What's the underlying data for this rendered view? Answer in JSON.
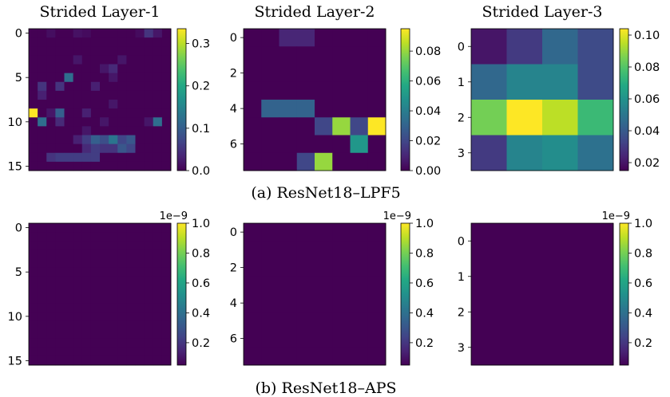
{
  "captions": {
    "a": "(a) ResNet18–LPF5",
    "b": "(b) ResNet18–APS"
  },
  "chart_data": [
    {
      "type": "heatmap",
      "row": "a",
      "title": "Strided Layer-1",
      "size": 16,
      "yticks": [
        0,
        5,
        10,
        15
      ],
      "colorbar": {
        "range": [
          0,
          0.335
        ],
        "ticks": [
          0.0,
          0.1,
          0.2,
          0.3
        ],
        "labels": [
          "0.0",
          "0.1",
          "0.2",
          "0.3"
        ],
        "multiplier": ""
      },
      "values": [
        [
          0.0,
          0.0,
          0.012,
          0.0,
          0.0,
          0.015,
          0.01,
          0.0,
          0.0,
          0.0,
          0.0,
          0.0,
          0.01,
          0.05,
          0.02,
          0.0
        ],
        [
          0.0,
          0.0,
          0.0,
          0.0,
          0.0,
          0.0,
          0.0,
          0.0,
          0.0,
          0.0,
          0.0,
          0.0,
          0.0,
          0.0,
          0.0,
          0.0
        ],
        [
          0.0,
          0.0,
          0.0,
          0.0,
          0.0,
          0.0,
          0.0,
          0.0,
          0.0,
          0.0,
          0.0,
          0.0,
          0.0,
          0.0,
          0.0,
          0.0
        ],
        [
          0.0,
          0.0,
          0.0,
          0.0,
          0.0,
          0.02,
          0.0,
          0.0,
          0.0,
          0.0,
          0.02,
          0.0,
          0.0,
          0.0,
          0.0,
          0.0
        ],
        [
          0.0,
          0.0,
          0.0,
          0.0,
          0.0,
          0.0,
          0.0,
          0.0,
          0.02,
          0.04,
          0.0,
          0.0,
          0.0,
          0.0,
          0.0,
          0.0
        ],
        [
          0.0,
          0.0,
          0.0,
          0.0,
          0.12,
          0.0,
          0.0,
          0.0,
          0.0,
          0.02,
          0.0,
          0.0,
          0.0,
          0.0,
          0.0,
          0.0
        ],
        [
          0.0,
          0.05,
          0.0,
          0.05,
          0.0,
          0.0,
          0.0,
          0.03,
          0.0,
          0.0,
          0.0,
          0.0,
          0.0,
          0.0,
          0.0,
          0.0
        ],
        [
          0.0,
          0.03,
          0.0,
          0.0,
          0.0,
          0.0,
          0.0,
          0.0,
          0.0,
          0.0,
          0.0,
          0.0,
          0.0,
          0.0,
          0.0,
          0.0
        ],
        [
          0.0,
          0.0,
          0.0,
          0.0,
          0.0,
          0.0,
          0.0,
          0.0,
          0.0,
          0.02,
          0.0,
          0.0,
          0.0,
          0.0,
          0.0,
          0.0
        ],
        [
          0.335,
          0.0,
          0.02,
          0.1,
          0.0,
          0.0,
          0.03,
          0.0,
          0.0,
          0.0,
          0.0,
          0.0,
          0.0,
          0.0,
          0.0,
          0.0
        ],
        [
          0.0,
          0.12,
          0.0,
          0.04,
          0.0,
          0.0,
          0.0,
          0.0,
          0.02,
          0.0,
          0.0,
          0.0,
          0.0,
          0.02,
          0.12,
          0.0
        ],
        [
          0.0,
          0.0,
          0.0,
          0.0,
          0.0,
          0.0,
          0.02,
          0.0,
          0.0,
          0.0,
          0.0,
          0.0,
          0.0,
          0.0,
          0.0,
          0.0
        ],
        [
          0.0,
          0.0,
          0.0,
          0.0,
          0.0,
          0.03,
          0.06,
          0.1,
          0.08,
          0.13,
          0.07,
          0.09,
          0.0,
          0.0,
          0.0,
          0.0
        ],
        [
          0.0,
          0.0,
          0.0,
          0.0,
          0.0,
          0.0,
          0.04,
          0.06,
          0.05,
          0.05,
          0.09,
          0.07,
          0.0,
          0.0,
          0.0,
          0.0
        ],
        [
          0.0,
          0.0,
          0.05,
          0.06,
          0.06,
          0.06,
          0.06,
          0.06,
          0.0,
          0.0,
          0.0,
          0.0,
          0.0,
          0.0,
          0.0,
          0.0
        ],
        [
          0.0,
          0.0,
          0.0,
          0.0,
          0.0,
          0.0,
          0.0,
          0.0,
          0.0,
          0.0,
          0.0,
          0.0,
          0.0,
          0.0,
          0.0,
          0.0
        ]
      ]
    },
    {
      "type": "heatmap",
      "row": "a",
      "title": "Strided Layer-2",
      "size": 8,
      "yticks": [
        0,
        2,
        4,
        6
      ],
      "colorbar": {
        "range": [
          0,
          0.095
        ],
        "ticks": [
          0.0,
          0.02,
          0.04,
          0.06,
          0.08
        ],
        "labels": [
          "0.00",
          "0.02",
          "0.04",
          "0.06",
          "0.08"
        ],
        "multiplier": ""
      },
      "values": [
        [
          0.0,
          0.0,
          0.01,
          0.01,
          0.0,
          0.0,
          0.0,
          0.0
        ],
        [
          0.0,
          0.0,
          0.0,
          0.0,
          0.0,
          0.0,
          0.0,
          0.0
        ],
        [
          0.0,
          0.0,
          0.0,
          0.0,
          0.0,
          0.0,
          0.0,
          0.0
        ],
        [
          0.0,
          0.0,
          0.0,
          0.0,
          0.0,
          0.0,
          0.0,
          0.0
        ],
        [
          0.0,
          0.03,
          0.03,
          0.03,
          0.0,
          0.0,
          0.0,
          0.0
        ],
        [
          0.0,
          0.0,
          0.0,
          0.0,
          0.02,
          0.08,
          0.02,
          0.095
        ],
        [
          0.0,
          0.0,
          0.0,
          0.0,
          0.0,
          0.0,
          0.05,
          0.0
        ],
        [
          0.0,
          0.0,
          0.0,
          0.02,
          0.08,
          0.0,
          0.0,
          0.0
        ]
      ]
    },
    {
      "type": "heatmap",
      "row": "a",
      "title": "Strided Layer-3",
      "size": 4,
      "yticks": [
        0,
        1,
        2,
        3
      ],
      "colorbar": {
        "range": [
          0.015,
          0.104
        ],
        "ticks": [
          0.02,
          0.04,
          0.06,
          0.08,
          0.1
        ],
        "labels": [
          "0.02",
          "0.04",
          "0.06",
          "0.08",
          "0.10"
        ],
        "multiplier": ""
      },
      "values": [
        [
          0.02,
          0.03,
          0.045,
          0.035
        ],
        [
          0.045,
          0.055,
          0.055,
          0.035
        ],
        [
          0.085,
          0.104,
          0.095,
          0.075
        ],
        [
          0.03,
          0.055,
          0.058,
          0.048
        ]
      ]
    },
    {
      "type": "heatmap",
      "row": "b",
      "title": "",
      "size": 16,
      "uniform_value": 0,
      "yticks": [
        0,
        5,
        10,
        15
      ],
      "colorbar": {
        "range": [
          0.05,
          1.0
        ],
        "ticks": [
          0.2,
          0.4,
          0.6,
          0.8,
          1.0
        ],
        "labels": [
          "0.2",
          "0.4",
          "0.6",
          "0.8",
          "1.0"
        ],
        "multiplier": "1e−9"
      }
    },
    {
      "type": "heatmap",
      "row": "b",
      "title": "",
      "size": 8,
      "uniform_value": 0,
      "yticks": [
        0,
        2,
        4,
        6
      ],
      "colorbar": {
        "range": [
          0.05,
          1.0
        ],
        "ticks": [
          0.2,
          0.4,
          0.6,
          0.8,
          1.0
        ],
        "labels": [
          "0.2",
          "0.4",
          "0.6",
          "0.8",
          "1.0"
        ],
        "multiplier": "1e−9"
      }
    },
    {
      "type": "heatmap",
      "row": "b",
      "title": "",
      "size": 4,
      "uniform_value": 0,
      "yticks": [
        0,
        1,
        2,
        3
      ],
      "colorbar": {
        "range": [
          0.05,
          1.0
        ],
        "ticks": [
          0.2,
          0.4,
          0.6,
          0.8,
          1.0
        ],
        "labels": [
          "0.2",
          "0.4",
          "0.6",
          "0.8",
          "1.0"
        ],
        "multiplier": "1e−9"
      }
    }
  ]
}
